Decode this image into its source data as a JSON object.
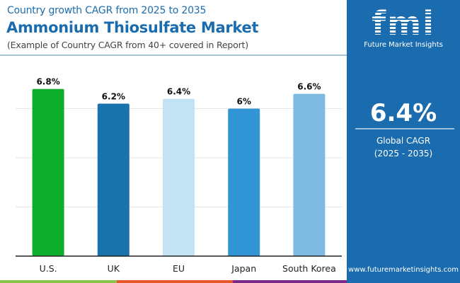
{
  "header": {
    "subtitle": "Country growth CAGR from 2025 to 2035",
    "title": "Ammonium Thiosulfate Market",
    "note": "(Example of Country CAGR from 40+ covered in Report)"
  },
  "panel": {
    "logo_text": "fmi",
    "brand": "Future Market Insights",
    "global_value": "6.4%",
    "global_label": "Global CAGR",
    "global_period": "(2025 - 2035)",
    "url": "www.futuremarketinsights.com",
    "background": "#1b6cae"
  },
  "footer_strip_colors": [
    "#8bc34a",
    "#e8562a",
    "#7b2a8c"
  ],
  "chart_data": {
    "type": "bar",
    "categories": [
      "U.S.",
      "UK",
      "EU",
      "Japan",
      "South Korea"
    ],
    "values": [
      6.8,
      6.2,
      6.4,
      6.0,
      6.6
    ],
    "data_labels": [
      "6.8%",
      "6.2%",
      "6.4%",
      "6%",
      "6.6%"
    ],
    "colors": [
      "#0ead2c",
      "#1a72ad",
      "#c3e2f3",
      "#3195d6",
      "#7fbae2"
    ],
    "ylim": [
      0,
      8
    ],
    "gridlines": [
      2,
      4,
      6
    ],
    "grid": true,
    "xlabel": "",
    "ylabel": ""
  }
}
